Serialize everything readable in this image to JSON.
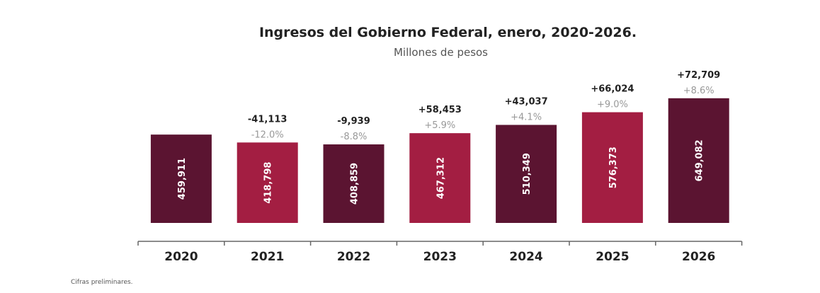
{
  "chart_data": {
    "type": "bar",
    "title": "Ingresos del Gobierno Federal, enero, 2020-2026.",
    "subtitle": "Millones de pesos",
    "categories": [
      "2020",
      "2021",
      "2022",
      "2023",
      "2024",
      "2025",
      "2026"
    ],
    "values": [
      459911,
      418798,
      408859,
      467312,
      510349,
      576373,
      649082
    ],
    "value_labels": [
      "459,911",
      "418,798",
      "408,859",
      "467,312",
      "510,349",
      "576,373",
      "649,082"
    ],
    "change_abs": [
      "",
      "-41,113",
      "-9,939",
      "+58,453",
      "+43,037",
      "+66,024",
      "+72,709"
    ],
    "change_pct": [
      "",
      "-12.0%",
      "-8.8%",
      "+5.9%",
      "+4.1%",
      "+9.0%",
      "+8.6%"
    ],
    "bar_colors": [
      "#5b1431",
      "#a31e42",
      "#5b1431",
      "#a31e42",
      "#5b1431",
      "#a31e42",
      "#5b1431"
    ],
    "ylim": [
      0,
      700000
    ],
    "grid": false,
    "footnote": "Cifras preliminares."
  }
}
